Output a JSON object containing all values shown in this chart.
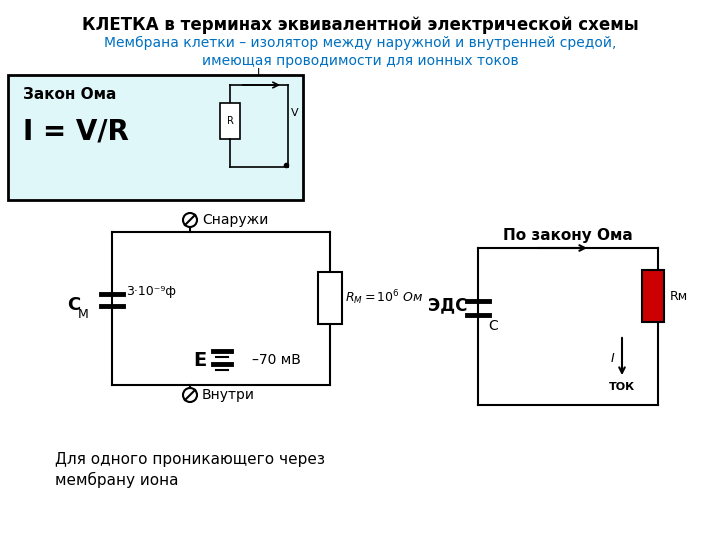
{
  "title": "КЛЕТКА в терминах эквивалентной электрической схемы",
  "subtitle_line1": "Мембрана клетки – изолятор между наружной и внутренней средой,",
  "subtitle_line2": "имеющая проводимости для ионных токов",
  "title_color": "#000000",
  "subtitle_color": "#0070C0",
  "bg_color": "#ffffff",
  "box_bg_color": "#E0F7FA",
  "box_border_color": "#000000",
  "ohm_law_text": "Закон Ома",
  "ohm_law_formula": "I = V/R",
  "snaru_label": "Снаружи",
  "vnutri_label": "Внутри",
  "cap_label": "3·10⁻⁹ф",
  "cm_label": "С М",
  "rm_label": "R М=10⁶ Ом",
  "e_label": "E",
  "emf_value": "–70 мВ",
  "po_zakonu_label": "По закону Ома",
  "eds_label": "ЭДС",
  "c_label": "С",
  "tok_label": "ТОК",
  "i_label": "I",
  "rm2_label": "Rм",
  "bottom_text_line1": "Для одного проникающего через",
  "bottom_text_line2": "мембрану иона",
  "resistor_color": "#cc0000"
}
